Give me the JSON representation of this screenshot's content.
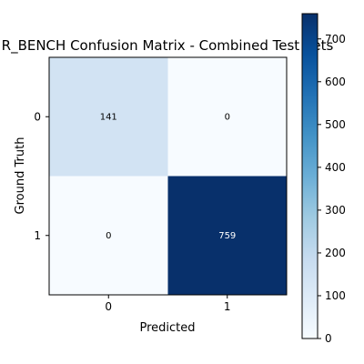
{
  "chart_data": {
    "type": "heatmap",
    "title": "R_BENCH Confusion Matrix - Combined Test Sets",
    "xlabel": "Predicted",
    "ylabel": "Ground Truth",
    "x_categories": [
      "0",
      "1"
    ],
    "y_categories": [
      "0",
      "1"
    ],
    "values": [
      [
        141,
        0
      ],
      [
        0,
        759
      ]
    ],
    "colormap": "Blues",
    "colorbar": {
      "range": [
        0,
        759
      ],
      "ticks": [
        0,
        100,
        200,
        300,
        400,
        500,
        600,
        700
      ]
    },
    "text_colors": {
      "light_cell": "#000000",
      "dark_cell": "#ffffff"
    }
  }
}
